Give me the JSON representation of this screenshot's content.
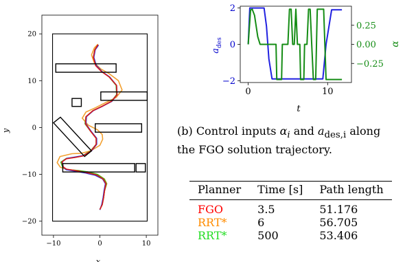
{
  "chart_data": [
    {
      "type": "line",
      "subtype": "trajectory-map",
      "xlabel": "x",
      "ylabel": "y",
      "xticks": [
        -10,
        0,
        10
      ],
      "yticks": [
        20,
        10,
        0,
        -10,
        -20
      ],
      "xlim": [
        -12.5,
        12.5
      ],
      "ylim": [
        -23,
        24
      ],
      "rectangle_obstacles": [
        {
          "x0": -9.5,
          "y0": 11.8,
          "x1": 3.5,
          "y1": 13.6
        },
        {
          "x0": 0.2,
          "y0": 5.8,
          "x1": 10.2,
          "y1": 7.6
        },
        {
          "x0": -6.0,
          "y0": 4.5,
          "x1": -4.0,
          "y1": 6.2
        },
        {
          "x0": -1.0,
          "y0": -1.0,
          "x1": 9.0,
          "y1": 0.8
        },
        {
          "x0": -8.0,
          "y0": -9.5,
          "x1": 7.5,
          "y1": -7.7
        },
        {
          "x0": 7.8,
          "y0": -9.5,
          "x1": 9.8,
          "y1": -7.7
        }
      ],
      "rotated_obstacle": {
        "corners": [
          [
            -10.0,
            1.0
          ],
          [
            -8.5,
            2.2
          ],
          [
            -1.8,
            -5.0
          ],
          [
            -3.3,
            -6.2
          ]
        ]
      },
      "boundary": {
        "x0": -10.2,
        "y0": -20.0,
        "x1": 10.2,
        "y1": 20.0
      },
      "series": [
        {
          "color": "#f2a030",
          "x": [
            0.0,
            0.5,
            0.8,
            1.0,
            1.5,
            1.0,
            -0.5,
            -2.5,
            -4.5,
            -7.0,
            -8.5,
            -9.2,
            -8.6,
            -6.0,
            -4.0,
            -2.0,
            0.0,
            0.6,
            0.5,
            -0.5,
            -2.5,
            -3.8,
            -3.0,
            -1.0,
            1.0,
            3.5,
            4.8,
            4.0,
            2.0,
            0.2,
            -1.2,
            -1.8,
            -1.2,
            -0.4
          ],
          "y": [
            -17.5,
            -16.5,
            -15.0,
            -13.5,
            -12.0,
            -11.0,
            -10.0,
            -9.5,
            -9.2,
            -9.0,
            -8.5,
            -7.5,
            -6.2,
            -5.6,
            -5.5,
            -5.0,
            -3.8,
            -2.5,
            -1.5,
            -0.5,
            0.5,
            2.0,
            3.3,
            4.2,
            5.2,
            6.4,
            8.0,
            10.0,
            11.5,
            12.5,
            13.8,
            15.5,
            17.0,
            17.8
          ]
        },
        {
          "color": "#22c022",
          "x": [
            0.0,
            0.5,
            0.8,
            1.0,
            1.4,
            0.9,
            -0.6,
            -2.6,
            -4.8,
            -7.0,
            -8.0,
            -8.4,
            -7.2,
            -5.4,
            -3.8,
            -2.0,
            -0.8,
            -0.8,
            -2.0,
            -3.2,
            -3.0,
            -1.5,
            0.6,
            2.5,
            3.6,
            3.5,
            2.0,
            0.5,
            -0.8,
            -1.4,
            -1.1,
            -0.4
          ],
          "y": [
            -17.5,
            -16.5,
            -15.0,
            -13.5,
            -12.0,
            -11.0,
            -10.0,
            -9.5,
            -9.2,
            -9.0,
            -8.5,
            -7.4,
            -6.6,
            -6.4,
            -6.1,
            -5.0,
            -3.6,
            -2.3,
            -0.8,
            0.8,
            2.3,
            3.6,
            4.6,
            5.6,
            7.0,
            9.0,
            10.8,
            11.9,
            13.2,
            15.0,
            16.6,
            17.7
          ]
        },
        {
          "color": "#2030d8",
          "x": [
            0.0,
            0.4,
            0.7,
            0.9,
            1.2,
            0.6,
            -1.0,
            -3.2,
            -5.5,
            -7.3,
            -7.9,
            -8.1,
            -7.1,
            -5.3,
            -3.6,
            -1.8,
            -0.7,
            -0.7,
            -1.9,
            -3.0,
            -2.9,
            -1.4,
            0.7,
            2.6,
            3.7,
            3.6,
            2.1,
            0.5,
            -0.8,
            -1.3,
            -1.0,
            -0.3
          ],
          "y": [
            -17.6,
            -16.5,
            -15.0,
            -13.5,
            -12.0,
            -11.0,
            -10.2,
            -9.7,
            -9.3,
            -9.0,
            -8.4,
            -7.3,
            -6.6,
            -6.3,
            -6.0,
            -5.0,
            -3.6,
            -2.3,
            -0.8,
            0.8,
            2.3,
            3.6,
            4.6,
            5.6,
            7.0,
            9.0,
            10.8,
            11.9,
            13.3,
            15.0,
            16.6,
            17.6
          ]
        },
        {
          "color": "#e01818",
          "x": [
            0.0,
            0.5,
            0.8,
            1.0,
            1.3,
            0.7,
            -0.8,
            -3.0,
            -5.3,
            -7.2,
            -7.9,
            -8.2,
            -7.3,
            -5.4,
            -3.7,
            -1.9,
            -0.8,
            -0.8,
            -2.0,
            -3.1,
            -3.0,
            -1.5,
            0.6,
            2.5,
            3.7,
            3.6,
            2.0,
            0.4,
            -0.9,
            -1.4,
            -1.1,
            -0.4
          ],
          "y": [
            -17.5,
            -16.5,
            -15.0,
            -13.5,
            -12.0,
            -11.0,
            -10.1,
            -9.6,
            -9.2,
            -8.9,
            -8.4,
            -7.4,
            -6.7,
            -6.4,
            -6.1,
            -5.0,
            -3.6,
            -2.3,
            -0.8,
            0.8,
            2.3,
            3.6,
            4.6,
            5.6,
            7.0,
            9.0,
            10.8,
            11.9,
            13.2,
            15.0,
            16.6,
            17.7
          ]
        }
      ]
    },
    {
      "type": "line",
      "xlabel": "t",
      "ylabel_left": "a",
      "ylabel_left_sub": "des",
      "ylabel_right": "α",
      "xticks": [
        0,
        10
      ],
      "yticks_left": [
        2,
        0,
        -2
      ],
      "yticks_right": [
        "0.25",
        "0.00",
        "−0.25"
      ],
      "xlim": [
        -1,
        13
      ],
      "ylim_left": [
        -2.1,
        2.1
      ],
      "ylim_right": [
        -0.5,
        0.5
      ],
      "series": [
        {
          "axis": "left",
          "color": "#2020e0",
          "x": [
            0,
            0.2,
            2.0,
            2.3,
            2.6,
            3.0,
            9.0,
            9.4,
            9.8,
            10.5,
            11.8
          ],
          "y": [
            0,
            2,
            2,
            1.0,
            -0.8,
            -1.9,
            -1.9,
            -1.9,
            0.0,
            1.9,
            1.9
          ]
        },
        {
          "axis": "right",
          "color": "#148c14",
          "x": [
            0,
            0.3,
            0.5,
            0.8,
            1.2,
            1.5,
            1.9,
            2.2,
            3.5,
            3.6,
            4.2,
            4.3,
            5.0,
            5.2,
            5.4,
            5.6,
            5.8,
            6.0,
            6.2,
            6.5,
            6.6,
            7.0,
            7.1,
            7.4,
            7.6,
            7.8,
            8.0,
            8.2,
            8.5,
            8.7,
            9.0,
            9.5,
            9.8,
            11.8
          ],
          "y": [
            0,
            0.45,
            0.46,
            0.38,
            0.1,
            0.0,
            0.0,
            0.0,
            0.0,
            -0.46,
            -0.46,
            0.0,
            0.0,
            0.46,
            0.46,
            0.0,
            0.0,
            0.46,
            0.0,
            0.0,
            -0.46,
            -0.46,
            0.0,
            0.0,
            0.46,
            0.46,
            0.0,
            -0.46,
            -0.46,
            0.46,
            0.46,
            0.46,
            -0.46,
            -0.46
          ]
        }
      ]
    }
  ],
  "caption": {
    "text_before": "(b) Control inputs ",
    "alpha_i": "α",
    "alpha_sub": "i",
    "and": " and ",
    "a_des": "a",
    "a_des_sub": "des,i",
    "text_after": " along",
    "line2": "the FGO solution trajectory."
  },
  "table": {
    "headers": [
      "Planner",
      "Time [s]",
      "Path length"
    ],
    "rows": [
      {
        "planner": "FGO",
        "time": "3.5",
        "length": "51.176",
        "color": "#ff0000"
      },
      {
        "planner": "RRT*",
        "time": "6",
        "length": "56.705",
        "color": "#ff8c00"
      },
      {
        "planner": "RRT*",
        "time": "500",
        "length": "53.406",
        "color": "#22dd22"
      }
    ]
  }
}
